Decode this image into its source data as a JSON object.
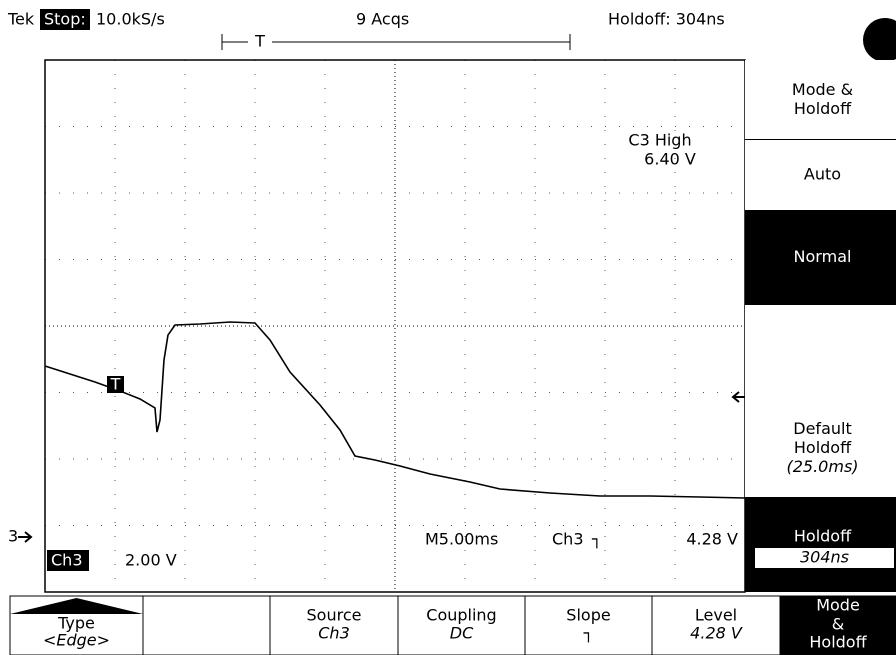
{
  "status_bar": {
    "brand": "Tek",
    "state": "Stop:",
    "sample_rate": "10.0kS/s",
    "acquisitions": "9 Acqs",
    "holdoff": "Holdoff: 304ns",
    "trigger_position": "T"
  },
  "readouts": {
    "trigger_high_label": "C3 High",
    "trigger_high_value": "6.40 V",
    "channel_marker": "3",
    "trigger_marker": "T",
    "channel": "Ch3",
    "volts_per_div": "2.00 V",
    "timebase": "M5.00ms",
    "trigger_source": "Ch3",
    "trigger_slope": "┐",
    "trigger_level": "4.28 V"
  },
  "side_menu": [
    {
      "lines": [
        "Mode &",
        "Holdoff"
      ]
    },
    {
      "lines": [
        "Auto"
      ]
    },
    {
      "lines": [
        "Normal"
      ],
      "selected": true
    },
    {
      "lines": []
    },
    {
      "lines": [
        "Default",
        "Holdoff",
        "(25.0ms)"
      ]
    },
    {
      "lines": [
        "Holdoff"
      ],
      "value": "304ns",
      "selected": true
    }
  ],
  "bottom_menu": [
    {
      "title": "Type",
      "value": "<Edge>"
    },
    {
      "title": null,
      "value": null
    },
    {
      "title": "Source",
      "value": "Ch3"
    },
    {
      "title": "Coupling",
      "value": "DC"
    },
    {
      "title": "Slope",
      "value": "┐"
    },
    {
      "title": "Level",
      "value": "4.28 V"
    },
    {
      "title": "Mode",
      "lines": [
        "&",
        "Holdoff"
      ],
      "selected": true
    }
  ]
}
